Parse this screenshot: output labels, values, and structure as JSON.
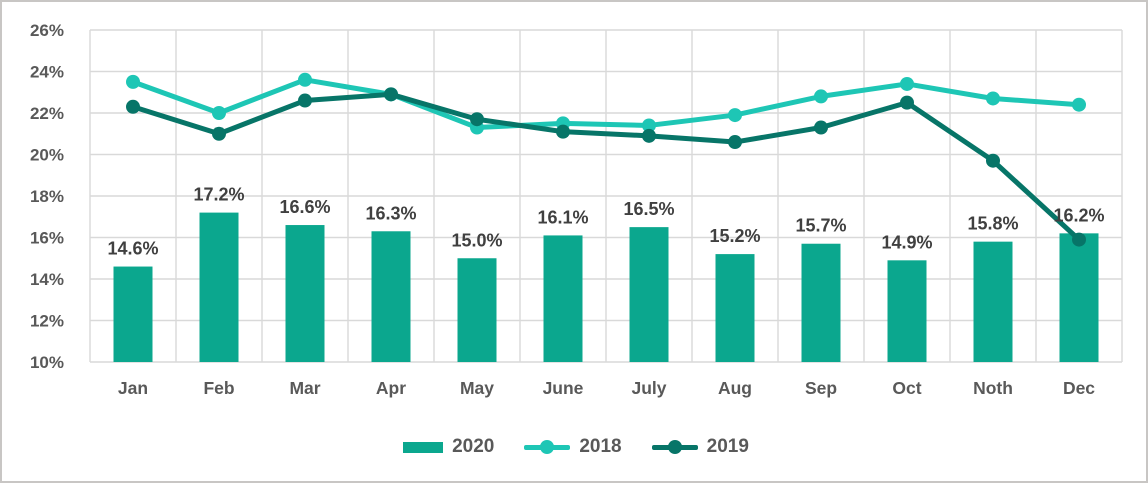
{
  "chart_data": {
    "type": "combo_bar_line",
    "categories": [
      "Jan",
      "Feb",
      "Mar",
      "Apr",
      "May",
      "June",
      "July",
      "Aug",
      "Sep",
      "Oct",
      "Noth",
      "Dec"
    ],
    "series": [
      {
        "name": "2020",
        "type": "bar",
        "color": "#0ba78e",
        "values": [
          14.6,
          17.2,
          16.6,
          16.3,
          15.0,
          16.1,
          16.5,
          15.2,
          15.7,
          14.9,
          15.8,
          16.2
        ],
        "data_labels": [
          "14.6%",
          "17.2%",
          "16.6%",
          "16.3%",
          "15.0%",
          "16.1%",
          "16.5%",
          "15.2%",
          "15.7%",
          "14.9%",
          "15.8%",
          "16.2%"
        ]
      },
      {
        "name": "2018",
        "type": "line",
        "color": "#1ec6b5",
        "values": [
          23.5,
          22.0,
          23.6,
          22.9,
          21.3,
          21.5,
          21.4,
          21.9,
          22.8,
          23.4,
          22.7,
          22.4
        ]
      },
      {
        "name": "2019",
        "type": "line",
        "color": "#077568",
        "values": [
          22.3,
          21.0,
          22.6,
          22.9,
          21.7,
          21.1,
          20.9,
          20.6,
          21.3,
          22.5,
          19.7,
          15.9
        ]
      }
    ],
    "y_axis": {
      "min": 10,
      "max": 26,
      "step": 2,
      "tick_labels": [
        "10%",
        "12%",
        "14%",
        "16%",
        "18%",
        "20%",
        "22%",
        "24%",
        "26%"
      ]
    },
    "grid": true,
    "legend_position": "bottom",
    "title": ""
  },
  "colors": {
    "gridline": "#d9d9d9",
    "axis_text": "#595959",
    "data_label_text": "#404040",
    "frame_border": "#c8c6c4",
    "background": "#ffffff"
  }
}
